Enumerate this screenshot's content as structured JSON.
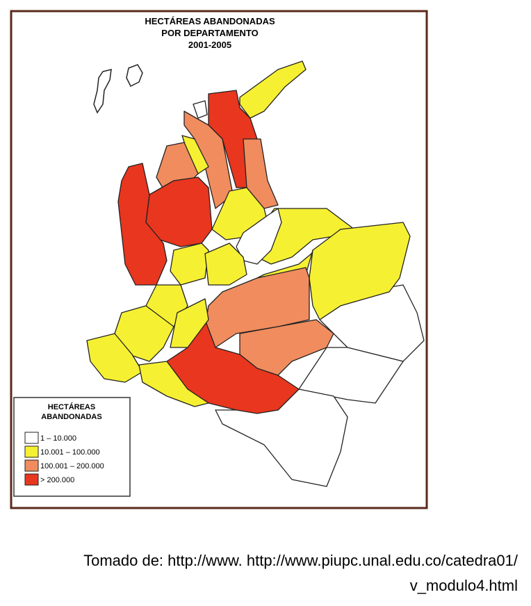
{
  "map": {
    "title_lines": [
      "HECTÁREAS ABANDONADAS",
      "POR DEPARTAMENTO",
      "2001-2005"
    ],
    "legend": {
      "title_lines": [
        "HECTÁREAS",
        "ABANDONADAS"
      ],
      "items": [
        {
          "label": "1 – 10.000",
          "color": "#ffffff"
        },
        {
          "label": "10.001 – 100.000",
          "color": "#f6f033"
        },
        {
          "label": "100.001 – 200.000",
          "color": "#f08c5e"
        },
        {
          "label": "> 200.000",
          "color": "#e8361f"
        }
      ]
    }
  },
  "caption": {
    "lines": [
      "Tomado de: http://www. http://www.piupc.unal.edu.co/catedra01/",
      "v_modulo4.html"
    ]
  }
}
